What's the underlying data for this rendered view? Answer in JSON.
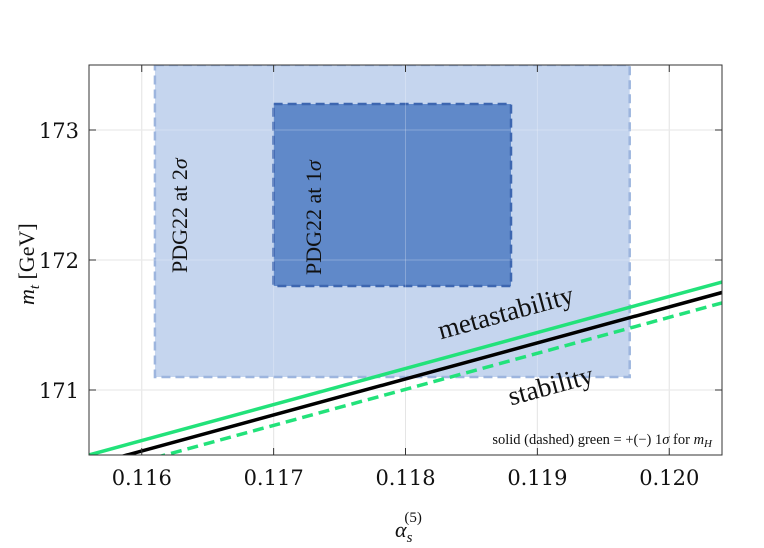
{
  "chart_data": {
    "type": "line",
    "title": "",
    "xlabel": "α_s^(5)",
    "ylabel": "m_t [GeV]",
    "xlim": [
      0.1156,
      0.1204
    ],
    "ylim": [
      170.5,
      173.5
    ],
    "x_ticks": [
      0.116,
      0.117,
      0.118,
      0.119,
      0.12
    ],
    "x_tick_labels": [
      "0.116",
      "0.117",
      "0.118",
      "0.119",
      "0.120"
    ],
    "y_ticks": [
      171,
      172,
      173
    ],
    "y_tick_labels": [
      "171",
      "172",
      "173"
    ],
    "grid": true,
    "regions": [
      {
        "name": "PDG22 at 2σ",
        "x_range": [
          0.1161,
          0.1197
        ],
        "y_range": [
          171.1,
          173.5
        ],
        "fill": "#c5d5ee",
        "border": "#9db5de"
      },
      {
        "name": "PDG22 at 1σ",
        "x_range": [
          0.117,
          0.1188
        ],
        "y_range": [
          171.8,
          173.2
        ],
        "fill": "#6089c9",
        "border": "#3d66b0"
      }
    ],
    "series": [
      {
        "name": "",
        "style": "solid",
        "color": "#22e27a",
        "x": [
          0.1156,
          0.1204
        ],
        "y": [
          170.5,
          171.83
        ]
      },
      {
        "name": "",
        "style": "solid",
        "color": "#000000",
        "x": [
          0.1156,
          0.1204
        ],
        "y": [
          170.42,
          171.75
        ]
      },
      {
        "name": "",
        "style": "dashed",
        "color": "#22e27a",
        "x": [
          0.1156,
          0.1204
        ],
        "y": [
          170.34,
          171.67
        ]
      }
    ],
    "annotations": {
      "metastability": "metastability",
      "stability": "stability",
      "note": "solid (dashed) green = +(−) 1σ for m_H"
    }
  },
  "text": {
    "region_2sigma": "PDG22 at 2σ",
    "region_1sigma": "PDG22 at 1σ",
    "region_2sigma_prefix": "PDG22 at 2",
    "region_1sigma_prefix": "PDG22 at 1",
    "sigma": "σ",
    "ylabel_m": "m",
    "ylabel_sub": "t",
    "ylabel_unit": " [GeV]",
    "xlabel_alpha": "α",
    "xlabel_sub": "s",
    "xlabel_sup": "(5)",
    "metastability": "metastability",
    "stability": "stability",
    "note_prefix": "solid (dashed) green = +(−) 1",
    "note_sigma": "σ",
    "note_for": " for ",
    "note_m": "m",
    "note_sub": "H"
  }
}
